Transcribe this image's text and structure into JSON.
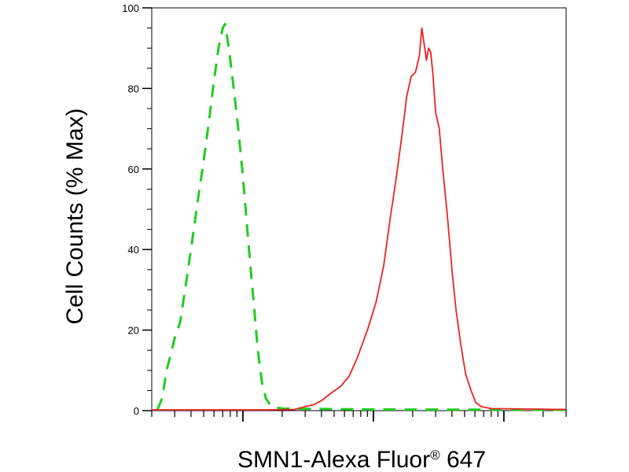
{
  "chart_data": {
    "type": "line",
    "title": "",
    "xlabel": "SMN1-Alexa Fluor",
    "xlabel_superscript": "®",
    "xlabel_suffix": " 647",
    "ylabel": "Cell Counts (% Max)",
    "x_scale": "log",
    "xlim": [
      20,
      30000
    ],
    "ylim": [
      0,
      100
    ],
    "y_ticks": [
      "0",
      "20",
      "40",
      "60",
      "80",
      "100"
    ],
    "grid": false,
    "legend": "none",
    "series": [
      {
        "color": "#22cc22",
        "style": "dashed",
        "points": [
          [
            22,
            0.1
          ],
          [
            24,
            3
          ],
          [
            26,
            10
          ],
          [
            28,
            14
          ],
          [
            30,
            18
          ],
          [
            33,
            22
          ],
          [
            36,
            30
          ],
          [
            40,
            40
          ],
          [
            45,
            52
          ],
          [
            50,
            62
          ],
          [
            55,
            72
          ],
          [
            60,
            82
          ],
          [
            65,
            90
          ],
          [
            70,
            95
          ],
          [
            73,
            96
          ],
          [
            78,
            90
          ],
          [
            85,
            80
          ],
          [
            92,
            70
          ],
          [
            100,
            58
          ],
          [
            110,
            42
          ],
          [
            120,
            28
          ],
          [
            130,
            15
          ],
          [
            140,
            7
          ],
          [
            150,
            3
          ],
          [
            165,
            1
          ],
          [
            200,
            0.5
          ],
          [
            1000,
            0.3
          ],
          [
            30000,
            0.2
          ]
        ]
      },
      {
        "color": "#ee2222",
        "style": "solid",
        "points": [
          [
            20,
            0.2
          ],
          [
            150,
            0.2
          ],
          [
            250,
            0.3
          ],
          [
            300,
            1
          ],
          [
            350,
            1.5
          ],
          [
            400,
            2.5
          ],
          [
            480,
            4.5
          ],
          [
            560,
            6
          ],
          [
            650,
            8.5
          ],
          [
            750,
            13
          ],
          [
            900,
            20
          ],
          [
            1050,
            27
          ],
          [
            1200,
            36
          ],
          [
            1350,
            48
          ],
          [
            1500,
            58
          ],
          [
            1650,
            68
          ],
          [
            1800,
            78
          ],
          [
            1950,
            83
          ],
          [
            2100,
            84
          ],
          [
            2250,
            88
          ],
          [
            2350,
            95
          ],
          [
            2450,
            91
          ],
          [
            2550,
            87
          ],
          [
            2650,
            90
          ],
          [
            2750,
            89
          ],
          [
            2850,
            84
          ],
          [
            3000,
            74
          ],
          [
            3200,
            70
          ],
          [
            3400,
            60
          ],
          [
            3700,
            48
          ],
          [
            4000,
            35
          ],
          [
            4300,
            25
          ],
          [
            4700,
            16
          ],
          [
            5100,
            9
          ],
          [
            5600,
            5
          ],
          [
            6100,
            2
          ],
          [
            6700,
            1
          ],
          [
            8000,
            0.5
          ],
          [
            30000,
            0.3
          ]
        ]
      }
    ]
  }
}
